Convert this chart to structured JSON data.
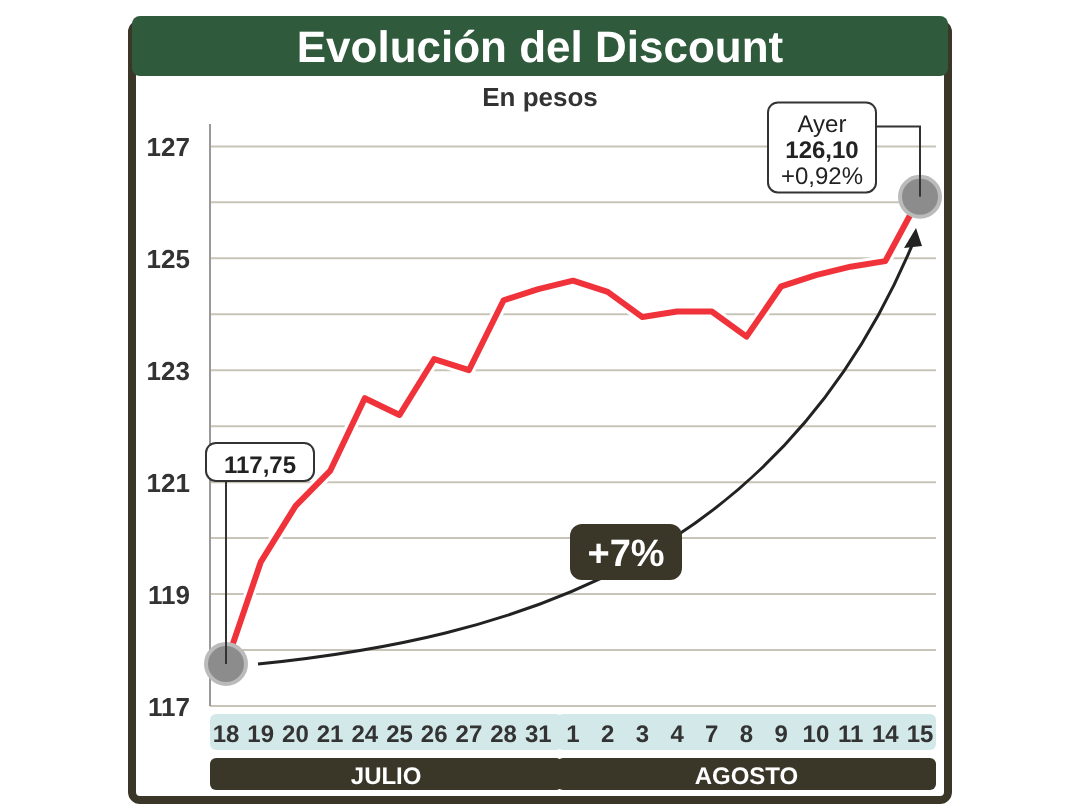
{
  "chart_data": {
    "type": "line",
    "title": "Evolución del Discount",
    "subtitle": "En pesos",
    "categories": [
      "18",
      "19",
      "20",
      "21",
      "24",
      "25",
      "26",
      "27",
      "28",
      "31",
      "1",
      "2",
      "3",
      "4",
      "7",
      "8",
      "9",
      "10",
      "11",
      "14",
      "15"
    ],
    "series": [
      {
        "color": "#f0333a",
        "values": [
          117.75,
          119.57,
          120.57,
          121.2,
          122.5,
          122.2,
          123.2,
          123.0,
          124.25,
          124.45,
          124.6,
          124.4,
          123.95,
          124.05,
          124.05,
          123.6,
          124.5,
          124.7,
          124.85,
          124.95,
          126.1
        ]
      }
    ],
    "ylim": [
      117,
      127.4
    ],
    "yticks": [
      117,
      {
        "value": 118,
        "label": null
      },
      119,
      {
        "value": 120,
        "label": null
      },
      121,
      {
        "value": 122,
        "label": null
      },
      123,
      {
        "value": 124,
        "label": null
      },
      125,
      {
        "value": 126,
        "label": null
      },
      127
    ],
    "grid": "y",
    "marker": "none",
    "line_style": "solid",
    "annotations": [
      {
        "text": "117,75",
        "x": "18",
        "y": 117.75
      },
      {
        "text": "Ayer\n126,10\n+0,92%",
        "x": "15",
        "y": 126.1
      },
      "+7%",
      "JULIO",
      "AGOSTO"
    ]
  }
}
